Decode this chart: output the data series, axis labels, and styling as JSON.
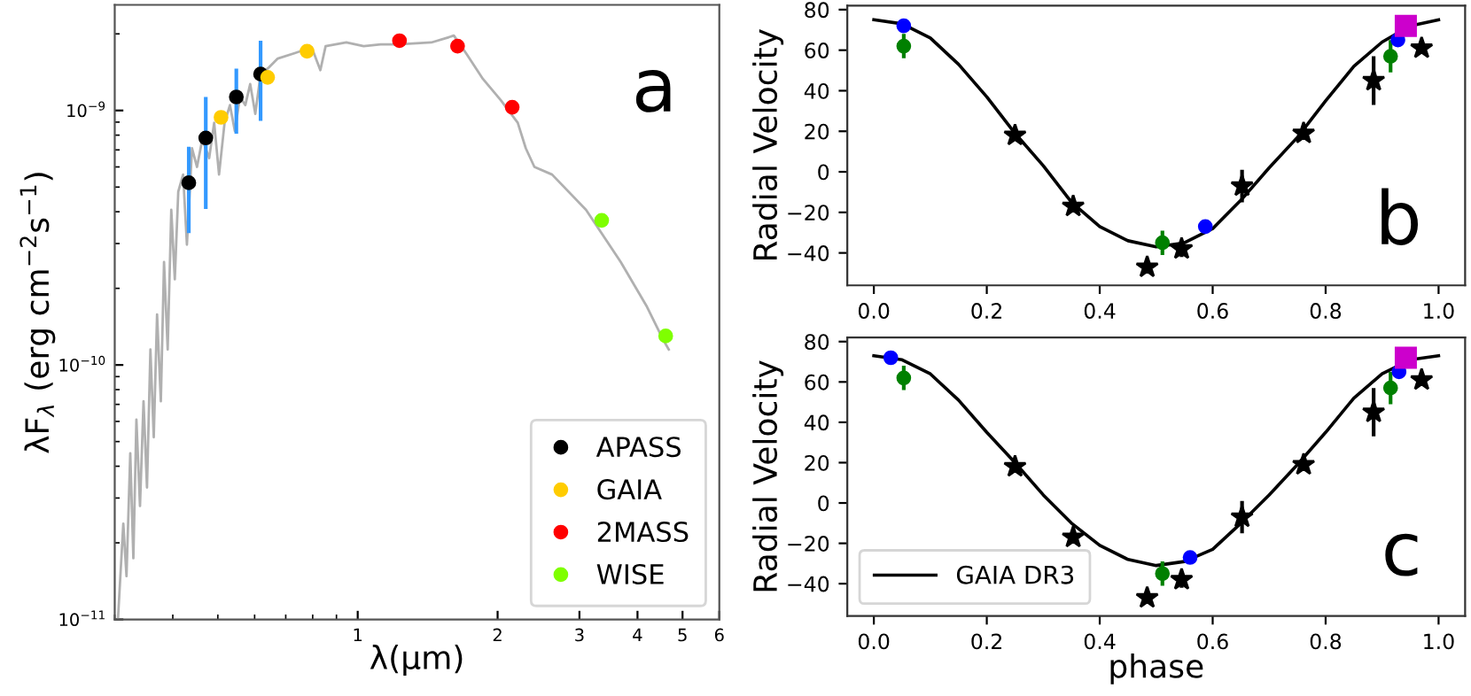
{
  "chart_data": [
    {
      "type": "scatter",
      "log": "xy",
      "xlabel": "λ(μm)",
      "ylabel": "λF$_{λ}$ (erg cm$^{−2}$s$^{−1}$)",
      "xlim": [
        0.3,
        6
      ],
      "ylim": [
        1e-11,
        2.6e-09
      ],
      "xticks": [
        1,
        2,
        3,
        4,
        5,
        6
      ],
      "yticks": [
        {
          "value": 1e-11,
          "label": "10$^{−11}$"
        },
        {
          "value": 1e-10,
          "label": "10$^{−10}$"
        },
        {
          "value": 1e-09,
          "label": "10$^{−9}$"
        }
      ],
      "grid": false,
      "legend": "bottom right",
      "annotations": [
        "a"
      ],
      "series": [
        {
          "type": "line",
          "color": "#b0b0b0",
          "line_style": "solid",
          "x": [
            0.305,
            0.313,
            0.318,
            0.324,
            0.329,
            0.334,
            0.34,
            0.346,
            0.352,
            0.358,
            0.364,
            0.37,
            0.377,
            0.383,
            0.39,
            0.397,
            0.404,
            0.411,
            0.421,
            0.429,
            0.44,
            0.451,
            0.463,
            0.479,
            0.491,
            0.503,
            0.517,
            0.531,
            0.544,
            0.558,
            0.573,
            0.587,
            0.602,
            0.618,
            0.645,
            0.673,
            0.732,
            0.796,
            0.831,
            0.853,
            0.945,
            1.03,
            1.12,
            1.22,
            1.44,
            1.57,
            1.61,
            1.71,
            1.86,
            2.03,
            2.21,
            2.3,
            2.4,
            2.62,
            3.1,
            3.68,
            4.18,
            4.55,
            4.67
          ],
          "values": [
            1.02e-11,
            2.38e-11,
            1.48e-11,
            4.5e-11,
            1.74e-11,
            6.1e-11,
            2.79e-11,
            7.2e-11,
            3.3e-11,
            1.15e-10,
            5.2e-11,
            1.58e-10,
            7.2e-11,
            2.54e-10,
            1.15e-10,
            4.07e-10,
            2.17e-10,
            4.8e-10,
            5.6e-10,
            2.97e-10,
            7.1e-10,
            6e-10,
            7.7e-10,
            6.5e-10,
            8.95e-10,
            5.6e-10,
            8.95e-10,
            1.05e-09,
            8.3e-10,
            1.13e-09,
            1.05e-09,
            1.27e-09,
            9.7e-10,
            1.39e-09,
            1.48e-09,
            1.6e-09,
            1.68e-09,
            1.77e-09,
            1.44e-09,
            1.79e-09,
            1.85e-09,
            1.79e-09,
            1.82e-09,
            1.82e-09,
            1.85e-09,
            1.94e-09,
            1.97e-09,
            1.68e-09,
            1.33e-09,
            1.1e-09,
            8.95e-10,
            7.1e-10,
            6e-10,
            5.6e-10,
            4.07e-10,
            2.54e-10,
            1.71e-10,
            1.25e-10,
            1.15e-10
          ]
        },
        {
          "type": "scatter",
          "name": "APASS",
          "color": "#000000",
          "marker": "circle",
          "x": [
            0.433,
            0.471,
            0.548,
            0.618
          ],
          "values": [
            5.2e-10,
            7.8e-10,
            1.13e-09,
            1.39e-09
          ],
          "errors": [
            [
              3.3e-10,
              7.2e-10
            ],
            [
              4.1e-10,
              1.13e-09
            ],
            [
              8.1e-10,
              1.46e-09
            ],
            [
              9.1e-10,
              1.88e-09
            ]
          ]
        },
        {
          "type": "scatter",
          "name": "GAIA",
          "color": "#ffcc00",
          "marker": "circle",
          "x": [
            0.508,
            0.64,
            0.778
          ],
          "values": [
            9.4e-10,
            1.35e-09,
            1.71e-09
          ]
        },
        {
          "type": "scatter",
          "name": "2MASS",
          "color": "#ff0000",
          "marker": "circle",
          "x": [
            1.23,
            1.64,
            2.15
          ],
          "values": [
            1.88e-09,
            1.79e-09,
            1.03e-09
          ]
        },
        {
          "type": "scatter",
          "name": "WISE",
          "color": "#7fff00",
          "marker": "circle",
          "x": [
            3.35,
            4.6
          ],
          "values": [
            3.7e-10,
            1.3e-10
          ]
        }
      ]
    },
    {
      "type": "scatter",
      "ylabel": "Radial Velocity",
      "xlim": [
        -0.047,
        1.047
      ],
      "ylim": [
        -56,
        82
      ],
      "xticks": [
        {
          "value": 0,
          "label": "0.0"
        },
        {
          "value": 0.2,
          "label": "0.2"
        },
        {
          "value": 0.4,
          "label": "0.4"
        },
        {
          "value": 0.6,
          "label": "0.6"
        },
        {
          "value": 0.8,
          "label": "0.8"
        },
        {
          "value": 1,
          "label": "1.0"
        }
      ],
      "yticks": [
        -40,
        -20,
        0,
        20,
        40,
        60,
        80
      ],
      "grid": false,
      "annotations": [
        "b"
      ],
      "series": [
        {
          "type": "line",
          "color": "#000000",
          "line_style": "solid",
          "x": [
            0,
            0.05,
            0.1,
            0.15,
            0.2,
            0.25,
            0.3,
            0.35,
            0.4,
            0.45,
            0.5,
            0.55,
            0.6,
            0.65,
            0.7,
            0.75,
            0.8,
            0.85,
            0.9,
            0.95,
            1
          ],
          "values": [
            75,
            73,
            66,
            53,
            37,
            19,
            3,
            -15,
            -27,
            -34,
            -37,
            -35,
            -28,
            -14,
            2,
            17,
            35,
            52,
            64,
            72,
            75
          ]
        },
        {
          "type": "scatter",
          "color": "#0000ff",
          "marker": "circle",
          "x": [
            0.053,
            0.587,
            0.928
          ],
          "values": [
            72,
            -27,
            65
          ]
        },
        {
          "type": "scatter",
          "color": "#008000",
          "marker": "circle",
          "x": [
            0.053,
            0.511,
            0.915
          ],
          "values": [
            62,
            -35,
            57
          ],
          "errors": [
            6,
            6,
            8
          ]
        },
        {
          "type": "scatter",
          "color": "#000000",
          "marker": "star",
          "x": [
            0.25,
            0.353,
            0.484,
            0.545,
            0.652,
            0.761,
            0.885,
            0.97
          ],
          "values": [
            18,
            -17,
            -47,
            -38,
            -7,
            19,
            45,
            61
          ],
          "errors": [
            null,
            null,
            null,
            4,
            8,
            3,
            12,
            null
          ]
        },
        {
          "type": "scatter",
          "color": "#cc00cc",
          "marker": "square",
          "x": [
            0.942
          ],
          "values": [
            72
          ]
        }
      ]
    },
    {
      "type": "scatter",
      "xlabel": "phase",
      "ylabel": "Radial Velocity",
      "xlim": [
        -0.047,
        1.047
      ],
      "ylim": [
        -56,
        82
      ],
      "xticks": [
        {
          "value": 0,
          "label": "0.0"
        },
        {
          "value": 0.2,
          "label": "0.2"
        },
        {
          "value": 0.4,
          "label": "0.4"
        },
        {
          "value": 0.6,
          "label": "0.6"
        },
        {
          "value": 0.8,
          "label": "0.8"
        },
        {
          "value": 1,
          "label": "1.0"
        }
      ],
      "yticks": [
        -40,
        -20,
        0,
        20,
        40,
        60,
        80
      ],
      "grid": false,
      "legend": "bottom left",
      "annotations": [
        "c"
      ],
      "series": [
        {
          "type": "line",
          "name": "GAIA DR3",
          "color": "#000000",
          "line_style": "solid",
          "x": [
            0,
            0.05,
            0.1,
            0.15,
            0.2,
            0.25,
            0.3,
            0.35,
            0.4,
            0.45,
            0.5,
            0.55,
            0.6,
            0.65,
            0.7,
            0.75,
            0.8,
            0.85,
            0.9,
            0.95,
            1
          ],
          "values": [
            73,
            71,
            64,
            51,
            35,
            20,
            4,
            -10,
            -21,
            -28,
            -31,
            -29,
            -23,
            -10,
            4,
            19,
            35,
            52,
            64,
            71,
            73
          ]
        },
        {
          "type": "scatter",
          "color": "#0000ff",
          "marker": "circle",
          "x": [
            0.03,
            0.56,
            0.93
          ],
          "values": [
            72,
            -27,
            65
          ]
        },
        {
          "type": "scatter",
          "color": "#008000",
          "marker": "circle",
          "x": [
            0.053,
            0.511,
            0.915
          ],
          "values": [
            62,
            -35,
            57
          ],
          "errors": [
            6,
            6,
            8
          ]
        },
        {
          "type": "scatter",
          "color": "#000000",
          "marker": "star",
          "x": [
            0.25,
            0.353,
            0.484,
            0.545,
            0.652,
            0.761,
            0.885,
            0.97
          ],
          "values": [
            18,
            -17,
            -47,
            -38,
            -7,
            19,
            45,
            61
          ],
          "errors": [
            null,
            null,
            null,
            4,
            8,
            3,
            12,
            null
          ]
        },
        {
          "type": "scatter",
          "color": "#cc00cc",
          "marker": "square",
          "x": [
            0.942
          ],
          "values": [
            72
          ]
        }
      ]
    }
  ]
}
